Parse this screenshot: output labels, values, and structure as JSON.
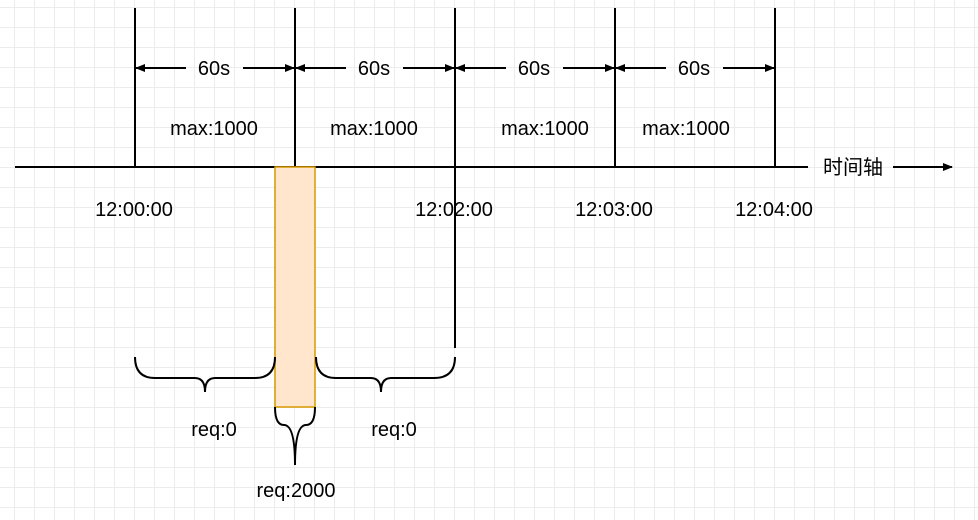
{
  "axis": {
    "label": "时间轴"
  },
  "intervals": [
    {
      "duration": "60s",
      "limit": "max:1000"
    },
    {
      "duration": "60s",
      "limit": "max:1000"
    },
    {
      "duration": "60s",
      "limit": "max:1000"
    },
    {
      "duration": "60s",
      "limit": "max:1000"
    }
  ],
  "times": [
    "12:00:00",
    "12:02:00",
    "12:03:00",
    "12:04:00"
  ],
  "requests": {
    "left": "req:0",
    "burst": "req:2000",
    "right": "req:0"
  },
  "colors": {
    "burst_fill": "#ffe6cc",
    "burst_stroke": "#d79b00",
    "line": "#000000"
  }
}
